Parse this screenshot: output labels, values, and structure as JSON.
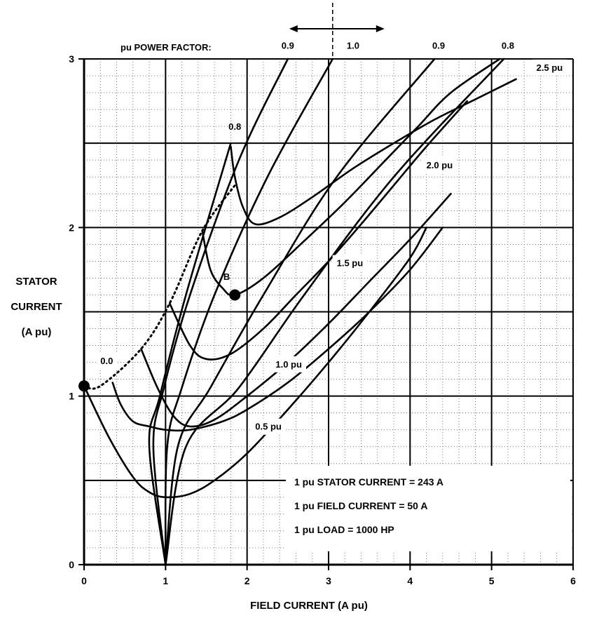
{
  "chart_data": {
    "type": "line",
    "title": "",
    "xlabel": "FIELD CURRENT (A pu)",
    "ylabel_lines": [
      "STATOR",
      "CURRENT",
      "(A pu)"
    ],
    "xlim": [
      0,
      6
    ],
    "ylim": [
      0,
      3
    ],
    "x_ticks": [
      "0",
      "1",
      "2",
      "3",
      "4",
      "5",
      "6"
    ],
    "y_ticks": [
      "0",
      "1",
      "2",
      "3"
    ],
    "grid": "major every 1.0 A pu in field current and 0.5 pu in stator current; dotted minor grid",
    "pf_header": "pu POWER FACTOR:",
    "v_curves": [
      {
        "name": "0.0",
        "label_x": 0.2,
        "label_y": 1.19,
        "points": [
          [
            0.0,
            1.06
          ],
          [
            0.3,
            0.76
          ],
          [
            0.6,
            0.52
          ],
          [
            0.8,
            0.43
          ],
          [
            1.0,
            0.4
          ],
          [
            1.3,
            0.42
          ],
          [
            1.6,
            0.5
          ],
          [
            2.0,
            0.66
          ],
          [
            2.5,
            0.92
          ],
          [
            3.0,
            1.2
          ],
          [
            3.5,
            1.5
          ],
          [
            4.0,
            1.82
          ],
          [
            4.2,
            2.0
          ]
        ]
      },
      {
        "name": "0.5 pu",
        "label_x": 2.1,
        "label_y": 0.8,
        "points": [
          [
            0.35,
            1.08
          ],
          [
            0.45,
            0.95
          ],
          [
            0.6,
            0.85
          ],
          [
            0.8,
            0.82
          ],
          [
            1.0,
            0.8
          ],
          [
            1.3,
            0.8
          ],
          [
            1.7,
            0.85
          ],
          [
            2.0,
            0.92
          ],
          [
            2.5,
            1.08
          ],
          [
            3.0,
            1.28
          ],
          [
            3.5,
            1.5
          ],
          [
            4.0,
            1.75
          ],
          [
            4.4,
            2.0
          ]
        ]
      },
      {
        "name": "1.0 pu",
        "label_x": 2.35,
        "label_y": 1.17,
        "points": [
          [
            0.7,
            1.28
          ],
          [
            0.9,
            1.05
          ],
          [
            1.1,
            0.88
          ],
          [
            1.3,
            0.82
          ],
          [
            1.6,
            0.86
          ],
          [
            2.0,
            1.0
          ],
          [
            2.5,
            1.2
          ],
          [
            3.0,
            1.43
          ],
          [
            3.5,
            1.68
          ],
          [
            4.0,
            1.93
          ],
          [
            4.5,
            2.2
          ]
        ]
      },
      {
        "name": "1.5 pu",
        "label_x": 3.1,
        "label_y": 1.77,
        "points": [
          [
            1.05,
            1.55
          ],
          [
            1.3,
            1.3
          ],
          [
            1.5,
            1.22
          ],
          [
            1.8,
            1.25
          ],
          [
            2.2,
            1.4
          ],
          [
            2.6,
            1.6
          ],
          [
            3.0,
            1.8
          ],
          [
            3.4,
            2.02
          ],
          [
            3.8,
            2.25
          ],
          [
            4.2,
            2.48
          ],
          [
            4.7,
            2.75
          ]
        ]
      },
      {
        "name": "2.0 pu",
        "label_x": 4.2,
        "label_y": 2.35,
        "points": [
          [
            1.45,
            1.98
          ],
          [
            1.55,
            1.75
          ],
          [
            1.7,
            1.64
          ],
          [
            1.85,
            1.6
          ],
          [
            2.2,
            1.7
          ],
          [
            2.7,
            1.92
          ],
          [
            3.2,
            2.15
          ],
          [
            3.7,
            2.4
          ],
          [
            4.1,
            2.6
          ],
          [
            4.5,
            2.8
          ],
          [
            5.1,
            3.0
          ]
        ]
      },
      {
        "name": "2.5 pu",
        "label_x": 5.55,
        "label_y": 2.93,
        "points": [
          [
            1.8,
            2.48
          ],
          [
            1.85,
            2.3
          ],
          [
            1.95,
            2.12
          ],
          [
            2.1,
            2.02
          ],
          [
            2.4,
            2.06
          ],
          [
            2.8,
            2.18
          ],
          [
            3.3,
            2.35
          ],
          [
            3.8,
            2.5
          ],
          [
            4.3,
            2.64
          ],
          [
            4.8,
            2.76
          ],
          [
            5.3,
            2.88
          ]
        ]
      }
    ],
    "pf_lines": [
      {
        "name": "0.8",
        "label_x": 1.85,
        "label_y": 2.58,
        "side": "leading",
        "points": [
          [
            1.0,
            0.0
          ],
          [
            0.8,
            0.7
          ],
          [
            0.93,
            1.0
          ],
          [
            1.25,
            1.6
          ],
          [
            1.8,
            2.5
          ]
        ]
      },
      {
        "name": "0.9",
        "label_x": 2.5,
        "label_y": 3.06,
        "side": "leading",
        "points": [
          [
            1.0,
            0.0
          ],
          [
            0.85,
            0.7
          ],
          [
            0.98,
            1.05
          ],
          [
            1.3,
            1.6
          ],
          [
            1.9,
            2.4
          ],
          [
            2.5,
            3.0
          ]
        ]
      },
      {
        "name": "1.0",
        "label_x": 3.3,
        "label_y": 3.06,
        "side": "unity",
        "points": [
          [
            1.0,
            0.0
          ],
          [
            1.02,
            0.7
          ],
          [
            1.2,
            1.05
          ],
          [
            1.6,
            1.6
          ],
          [
            2.25,
            2.3
          ],
          [
            3.05,
            3.0
          ]
        ]
      },
      {
        "name": "0.9",
        "label_x": 4.35,
        "label_y": 3.06,
        "side": "lagging",
        "points": [
          [
            1.0,
            0.0
          ],
          [
            1.15,
            0.7
          ],
          [
            1.55,
            1.05
          ],
          [
            2.2,
            1.6
          ],
          [
            3.1,
            2.3
          ],
          [
            4.3,
            3.0
          ]
        ]
      },
      {
        "name": "0.8",
        "label_x": 5.2,
        "label_y": 3.06,
        "side": "lagging",
        "points": [
          [
            1.0,
            0.0
          ],
          [
            1.25,
            0.7
          ],
          [
            1.9,
            1.05
          ],
          [
            2.7,
            1.6
          ],
          [
            3.8,
            2.3
          ],
          [
            5.15,
            3.0
          ]
        ]
      }
    ],
    "stability_limit": {
      "style": "dotted",
      "points": [
        [
          0.0,
          1.06
        ],
        [
          0.2,
          1.06
        ],
        [
          0.7,
          1.28
        ],
        [
          1.05,
          1.55
        ],
        [
          1.45,
          1.98
        ],
        [
          1.85,
          2.25
        ]
      ]
    },
    "markers": [
      {
        "name": "",
        "x": 0.0,
        "y": 1.06
      },
      {
        "name": "B",
        "x": 1.85,
        "y": 1.6,
        "label_x": 1.75,
        "label_y": 1.69
      }
    ],
    "unity_pf_divider_x": 3.05,
    "notes": [
      "1 pu STATOR CURRENT = 243 A",
      "1 pu FIELD CURRENT = 50 A",
      "1 pu LOAD = 1000 HP"
    ]
  }
}
